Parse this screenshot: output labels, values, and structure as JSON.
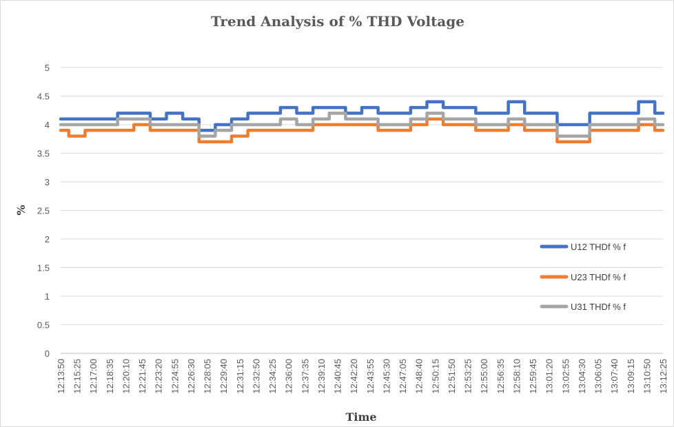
{
  "chart_data": {
    "type": "line",
    "title": "Trend Analysis of % THD Voltage",
    "xlabel": "Time",
    "ylabel": "%",
    "ylim": [
      0,
      5
    ],
    "yticks": [
      "0",
      "0.5",
      "1",
      "1.5",
      "2",
      "2.5",
      "3",
      "3.5",
      "4",
      "4.5",
      "5"
    ],
    "grid": true,
    "legend_position": "right",
    "categories": [
      "12:13:50",
      "12:15:25",
      "12:17:00",
      "12:18:35",
      "12:20:10",
      "12:21:45",
      "12:23:20",
      "12:24:55",
      "12:26:30",
      "12:28:05",
      "12:29:40",
      "12:31:15",
      "12:32:50",
      "12:34:25",
      "12:36:00",
      "12:37:35",
      "12:39:10",
      "12:40:45",
      "12:42:20",
      "12:43:55",
      "12:45:30",
      "12:47:05",
      "12:48:40",
      "12:50:15",
      "12:51:50",
      "12:53:25",
      "12:55:00",
      "12:56:35",
      "12:58:10",
      "12:59:45",
      "13:01:20",
      "13:02:55",
      "13:04:30",
      "13:06:05",
      "13:07:40",
      "13:09:15",
      "13:10:50",
      "13:12:25"
    ],
    "series": [
      {
        "name": "U12 THDf % f",
        "color": "#4472C4",
        "values": [
          4.1,
          4.1,
          4.1,
          4.1,
          4.2,
          4.2,
          4.1,
          4.2,
          4.1,
          3.9,
          4.0,
          4.1,
          4.2,
          4.2,
          4.3,
          4.2,
          4.3,
          4.3,
          4.2,
          4.3,
          4.2,
          4.2,
          4.3,
          4.4,
          4.3,
          4.3,
          4.2,
          4.2,
          4.4,
          4.2,
          4.2,
          4.0,
          4.0,
          4.2,
          4.2,
          4.2,
          4.4,
          4.2
        ]
      },
      {
        "name": "U23 THDf % f",
        "color": "#ED7D31",
        "values": [
          3.9,
          3.8,
          3.9,
          3.9,
          3.9,
          4.0,
          3.9,
          3.9,
          3.9,
          3.7,
          3.7,
          3.8,
          3.9,
          3.9,
          3.9,
          3.9,
          4.0,
          4.0,
          4.0,
          4.0,
          3.9,
          3.9,
          4.0,
          4.1,
          4.0,
          4.0,
          3.9,
          3.9,
          4.0,
          3.9,
          3.9,
          3.7,
          3.7,
          3.9,
          3.9,
          3.9,
          4.0,
          3.9
        ]
      },
      {
        "name": "U31 THDf % f",
        "color": "#A5A5A5",
        "values": [
          4.0,
          4.0,
          4.0,
          4.0,
          4.1,
          4.1,
          4.0,
          4.0,
          4.0,
          3.8,
          3.9,
          4.0,
          4.0,
          4.0,
          4.1,
          4.0,
          4.1,
          4.2,
          4.1,
          4.1,
          4.0,
          4.0,
          4.1,
          4.2,
          4.1,
          4.1,
          4.0,
          4.0,
          4.1,
          4.0,
          4.0,
          3.8,
          3.8,
          4.0,
          4.0,
          4.0,
          4.1,
          4.0
        ]
      }
    ]
  }
}
